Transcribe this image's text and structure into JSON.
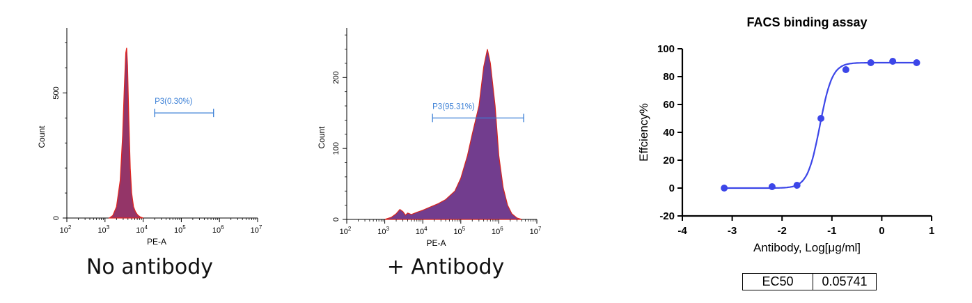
{
  "chart_data": [
    {
      "type": "area",
      "name": "histogram-no-antibody",
      "caption": "No antibody",
      "xlabel": "PE-A",
      "ylabel": "Count",
      "x_scale": "log",
      "xlim": [
        100,
        10000000
      ],
      "x_ticks": [
        {
          "base": "10",
          "exp": "2"
        },
        {
          "base": "10",
          "exp": "3"
        },
        {
          "base": "10",
          "exp": "4"
        },
        {
          "base": "10",
          "exp": "5"
        },
        {
          "base": "10",
          "exp": "6"
        },
        {
          "base": "10",
          "exp": "7"
        }
      ],
      "ylim": [
        0,
        760
      ],
      "y_ticks": [
        0,
        500
      ],
      "gate": {
        "label": "P3(0.30%)",
        "x_start": 20000,
        "x_end": 700000,
        "y": 420
      },
      "fill_color": "#8e2a60",
      "outline_color": "#e3261f",
      "points": [
        [
          1300,
          0
        ],
        [
          1600,
          10
        ],
        [
          2000,
          45
        ],
        [
          2500,
          150
        ],
        [
          2900,
          330
        ],
        [
          3200,
          520
        ],
        [
          3500,
          660
        ],
        [
          3700,
          680
        ],
        [
          3900,
          610
        ],
        [
          4200,
          400
        ],
        [
          4600,
          200
        ],
        [
          5000,
          100
        ],
        [
          5600,
          45
        ],
        [
          6300,
          25
        ],
        [
          7200,
          12
        ],
        [
          8500,
          4
        ],
        [
          10000,
          0
        ]
      ]
    },
    {
      "type": "area",
      "name": "histogram-plus-antibody",
      "caption": "+ Antibody",
      "xlabel": "PE-A",
      "ylabel": "Count",
      "x_scale": "log",
      "xlim": [
        100,
        10000000
      ],
      "x_ticks": [
        {
          "base": "10",
          "exp": "2"
        },
        {
          "base": "10",
          "exp": "3"
        },
        {
          "base": "10",
          "exp": "4"
        },
        {
          "base": "10",
          "exp": "5"
        },
        {
          "base": "10",
          "exp": "6"
        },
        {
          "base": "10",
          "exp": "7"
        }
      ],
      "ylim": [
        0,
        270
      ],
      "y_ticks": [
        0,
        100,
        200
      ],
      "gate": {
        "label": "P3(95.31%)",
        "x_start": 18000,
        "x_end": 4500000,
        "y": 143
      },
      "fill_color": "#6a3388",
      "outline_color": "#d8261f",
      "points": [
        [
          1000,
          0
        ],
        [
          1500,
          3
        ],
        [
          2000,
          8
        ],
        [
          2500,
          14
        ],
        [
          3000,
          11
        ],
        [
          3500,
          6
        ],
        [
          4000,
          9
        ],
        [
          5000,
          7
        ],
        [
          7000,
          10
        ],
        [
          10000,
          13
        ],
        [
          15000,
          17
        ],
        [
          25000,
          22
        ],
        [
          40000,
          28
        ],
        [
          70000,
          40
        ],
        [
          100000,
          58
        ],
        [
          150000,
          90
        ],
        [
          200000,
          120
        ],
        [
          300000,
          160
        ],
        [
          400000,
          215
        ],
        [
          500000,
          240
        ],
        [
          600000,
          220
        ],
        [
          800000,
          160
        ],
        [
          1000000,
          90
        ],
        [
          1300000,
          45
        ],
        [
          1700000,
          20
        ],
        [
          2200000,
          8
        ],
        [
          3000000,
          2
        ],
        [
          4000000,
          0
        ]
      ]
    },
    {
      "type": "scatter",
      "name": "facs-binding-assay",
      "title": "FACS binding assay",
      "xlabel": "Antibody, Log[μg/ml]",
      "ylabel": "Effciency%",
      "xlim": [
        -4,
        1
      ],
      "ylim": [
        -20,
        100
      ],
      "x_ticks": [
        -4,
        -3,
        -2,
        -1,
        0,
        1
      ],
      "y_ticks": [
        -20,
        0,
        20,
        40,
        60,
        80,
        100
      ],
      "point_color": "#3c46e8",
      "curve_color": "#3c46e8",
      "x": [
        -3.16,
        -2.2,
        -1.7,
        -1.22,
        -0.72,
        -0.22,
        0.22,
        0.7
      ],
      "y": [
        0,
        1,
        2,
        50,
        85,
        90,
        91,
        90
      ],
      "fit": {
        "model": "4PL",
        "bottom": 0,
        "top": 90,
        "log_ec50": -1.241,
        "hill": 3.5
      },
      "ec50": {
        "label": "EC50",
        "value": "0.05741"
      }
    }
  ]
}
